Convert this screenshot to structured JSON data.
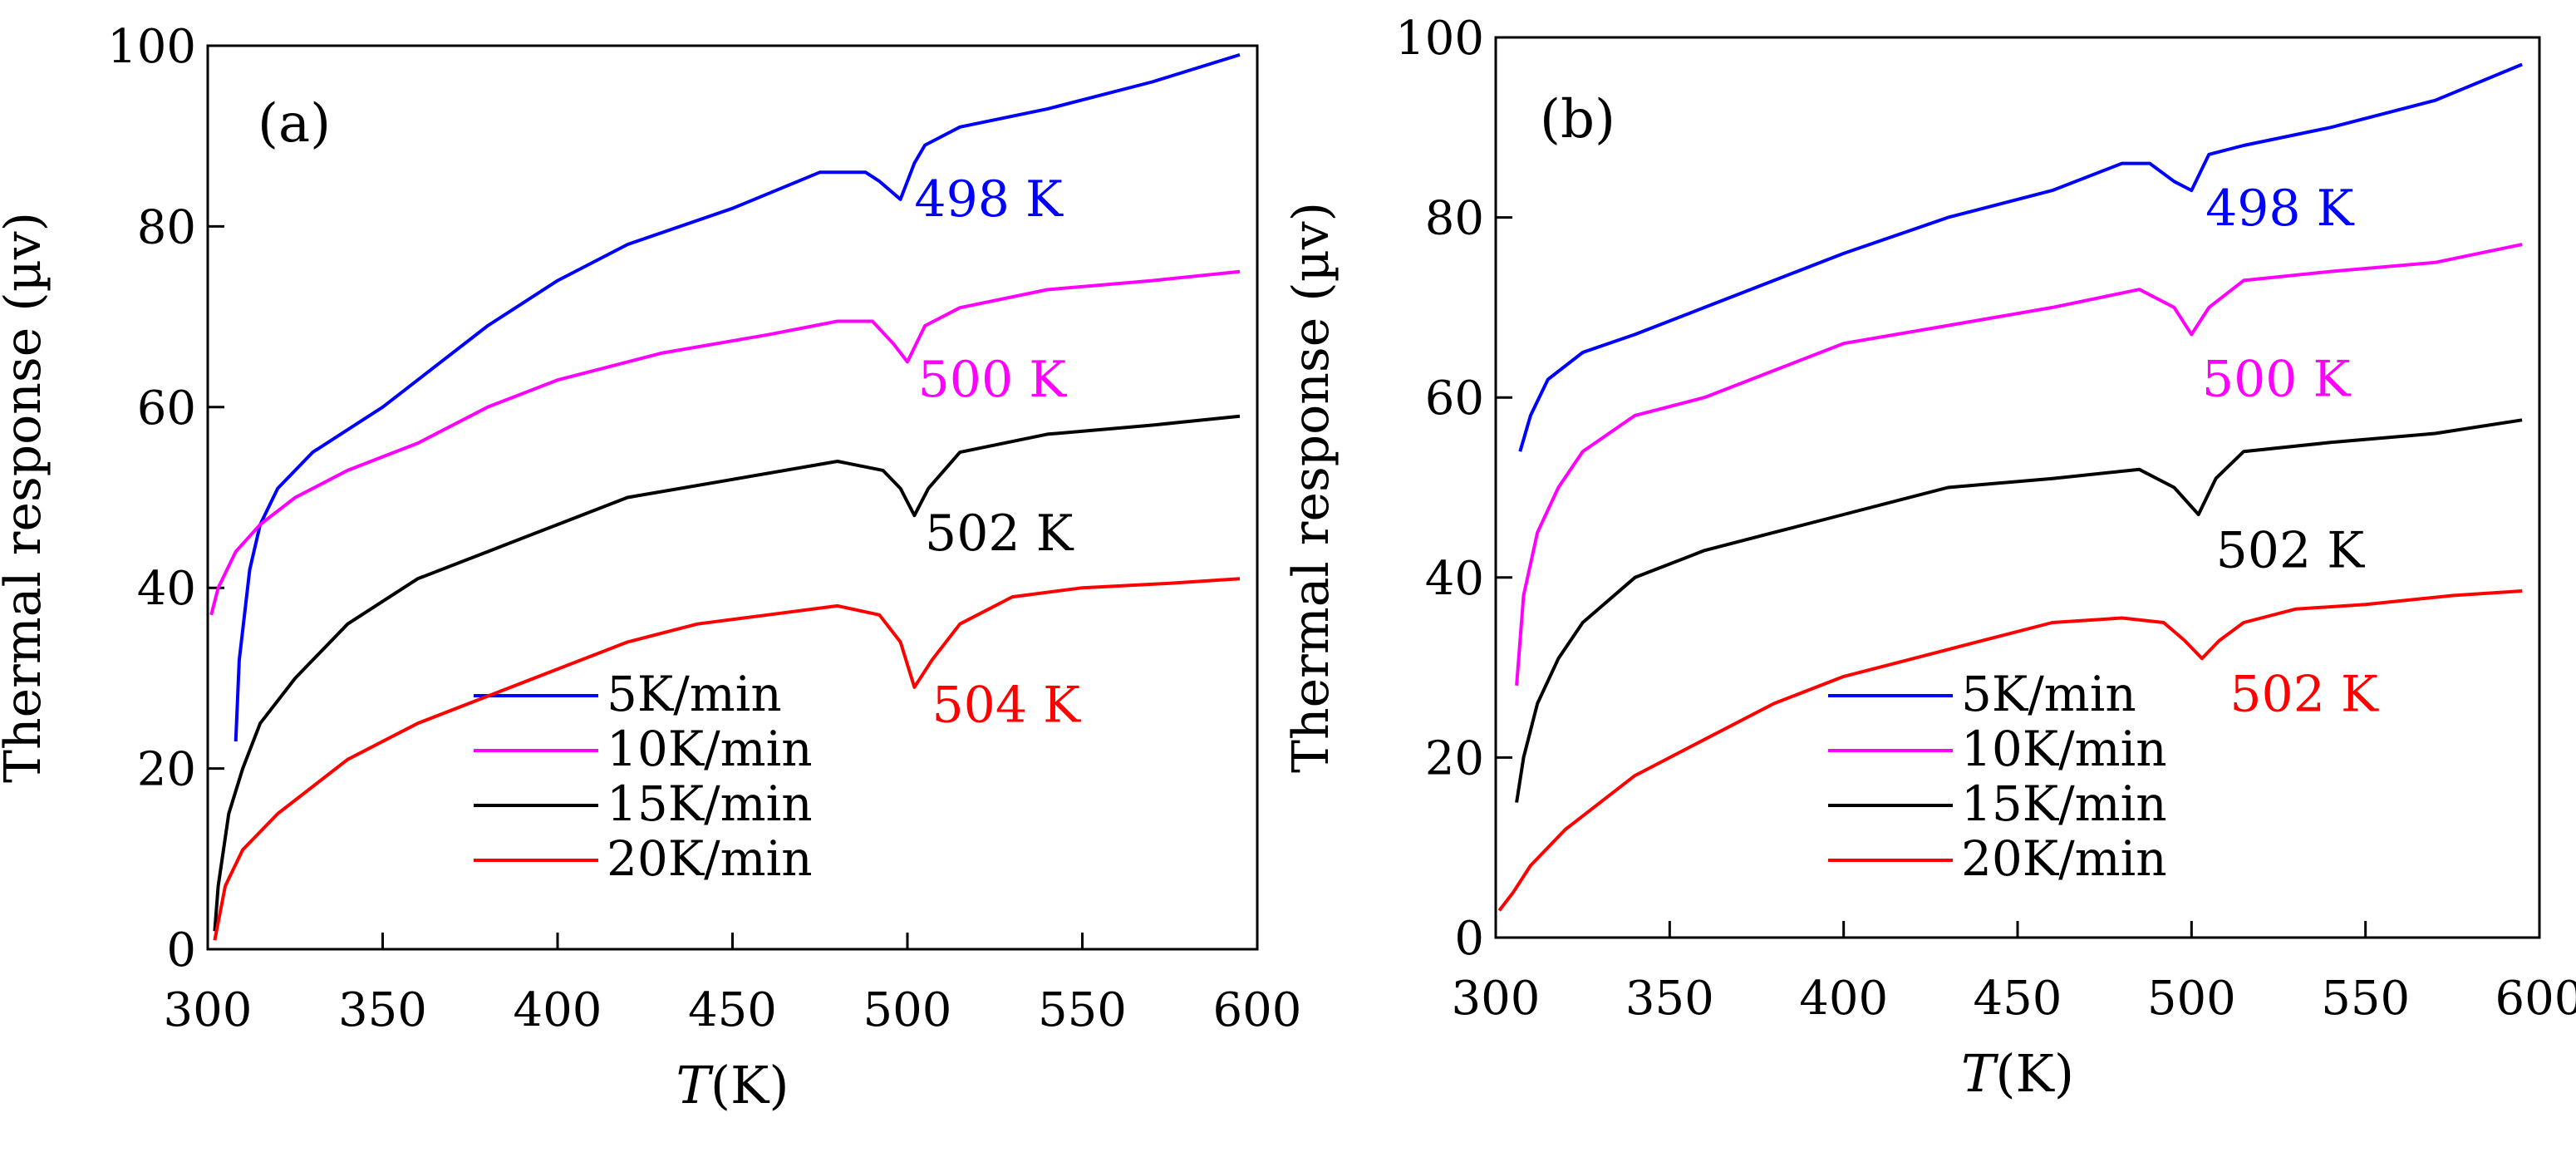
{
  "chart_data": [
    {
      "type": "line",
      "panel_label": "(a)",
      "xlabel_italic": "T",
      "xlabel_rest": "(K)",
      "ylabel": "Thermal response (µv)",
      "xlim": [
        300,
        600
      ],
      "ylim": [
        0,
        100
      ],
      "x_ticks": [
        "300",
        "350",
        "400",
        "450",
        "500",
        "550",
        "600"
      ],
      "y_ticks": [
        "0",
        "20",
        "40",
        "60",
        "80",
        "100"
      ],
      "grid": false,
      "legend_position": "bottom-center",
      "series": [
        {
          "name": "5K/min",
          "color": "#0000ff",
          "x": [
            308,
            309,
            312,
            315,
            320,
            330,
            350,
            380,
            400,
            420,
            450,
            475,
            488,
            492,
            498,
            502,
            505,
            515,
            540,
            570,
            595
          ],
          "y": [
            23,
            32,
            42,
            47,
            51,
            55,
            60,
            69,
            74,
            78,
            82,
            86,
            86,
            85,
            83,
            87,
            89,
            91,
            93,
            96,
            99
          ],
          "peak_label": "498 K",
          "peak_label_at": [
            502,
            83
          ]
        },
        {
          "name": "10K/min",
          "color": "#ff00ff",
          "x": [
            301,
            303,
            308,
            315,
            325,
            340,
            360,
            380,
            400,
            430,
            460,
            480,
            490,
            496,
            500,
            505,
            515,
            540,
            570,
            595
          ],
          "y": [
            37,
            40,
            44,
            47,
            50,
            53,
            56,
            60,
            63,
            66,
            68,
            69.5,
            69.5,
            67,
            65,
            69,
            71,
            73,
            74,
            75
          ],
          "peak_label": "500 K",
          "peak_label_at": [
            503,
            63
          ]
        },
        {
          "name": "15K/min",
          "color": "#000000",
          "x": [
            302,
            303,
            306,
            310,
            315,
            325,
            340,
            360,
            380,
            400,
            420,
            450,
            480,
            493,
            498,
            502,
            506,
            515,
            540,
            570,
            595
          ],
          "y": [
            2,
            7,
            15,
            20,
            25,
            30,
            36,
            41,
            44,
            47,
            50,
            52,
            54,
            53,
            51,
            48,
            51,
            55,
            57,
            58,
            59
          ],
          "peak_label": "502 K",
          "peak_label_at": [
            505,
            46
          ]
        },
        {
          "name": "20K/min",
          "color": "#ff0000",
          "x": [
            302,
            305,
            310,
            320,
            340,
            360,
            380,
            400,
            420,
            440,
            460,
            480,
            492,
            498,
            502,
            507,
            515,
            530,
            550,
            575,
            595
          ],
          "y": [
            1,
            7,
            11,
            15,
            21,
            25,
            28,
            31,
            34,
            36,
            37,
            38,
            37,
            34,
            29,
            32,
            36,
            39,
            40,
            40.5,
            41
          ],
          "peak_label": "504 K",
          "peak_label_at": [
            507,
            27
          ]
        }
      ]
    },
    {
      "type": "line",
      "panel_label": "(b)",
      "xlabel_italic": "T",
      "xlabel_rest": "(K)",
      "ylabel": "Thermal response (µv)",
      "xlim": [
        300,
        600
      ],
      "ylim": [
        0,
        100
      ],
      "x_ticks": [
        "300",
        "350",
        "400",
        "450",
        "500",
        "550",
        "600"
      ],
      "y_ticks": [
        "0",
        "20",
        "40",
        "60",
        "80",
        "100"
      ],
      "grid": false,
      "legend_position": "bottom-center",
      "series": [
        {
          "name": "5K/min",
          "color": "#0000ff",
          "x": [
            307,
            310,
            315,
            325,
            340,
            360,
            380,
            400,
            430,
            460,
            480,
            488,
            495,
            500,
            505,
            515,
            540,
            570,
            595
          ],
          "y": [
            54,
            58,
            62,
            65,
            67,
            70,
            73,
            76,
            80,
            83,
            86,
            86,
            84,
            83,
            87,
            88,
            90,
            93,
            97
          ],
          "peak_label": "498 K",
          "peak_label_at": [
            504,
            81
          ]
        },
        {
          "name": "10K/min",
          "color": "#ff00ff",
          "x": [
            306,
            308,
            312,
            318,
            325,
            340,
            360,
            380,
            400,
            430,
            460,
            485,
            495,
            500,
            505,
            515,
            540,
            570,
            595
          ],
          "y": [
            28,
            38,
            45,
            50,
            54,
            58,
            60,
            63,
            66,
            68,
            70,
            72,
            70,
            67,
            70,
            73,
            74,
            75,
            77
          ],
          "peak_label": "500 K",
          "peak_label_at": [
            503,
            62
          ]
        },
        {
          "name": "15K/min",
          "color": "#000000",
          "x": [
            306,
            308,
            312,
            318,
            325,
            340,
            360,
            380,
            400,
            430,
            460,
            485,
            495,
            502,
            507,
            515,
            540,
            570,
            595
          ],
          "y": [
            15,
            20,
            26,
            31,
            35,
            40,
            43,
            45,
            47,
            50,
            51,
            52,
            50,
            47,
            51,
            54,
            55,
            56,
            57.5
          ],
          "peak_label": "502 K",
          "peak_label_at": [
            507,
            43
          ]
        },
        {
          "name": "20K/min",
          "color": "#ff0000",
          "x": [
            301,
            305,
            310,
            320,
            340,
            360,
            380,
            400,
            420,
            440,
            460,
            480,
            492,
            498,
            503,
            508,
            515,
            530,
            550,
            575,
            595
          ],
          "y": [
            3,
            5,
            8,
            12,
            18,
            22,
            26,
            29,
            31,
            33,
            35,
            35.5,
            35,
            33,
            31,
            33,
            35,
            36.5,
            37,
            38,
            38.5
          ],
          "peak_label": "502 K",
          "peak_label_at": [
            511,
            27
          ]
        }
      ]
    }
  ]
}
